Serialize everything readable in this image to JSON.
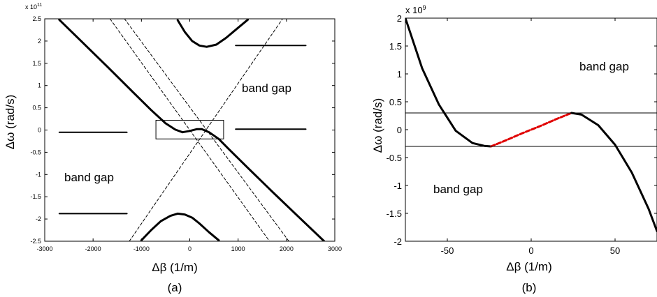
{
  "chart_data": [
    {
      "type": "line",
      "panel_label": "(a)",
      "xlabel": "Δβ (1/m)",
      "ylabel": "Δω (rad/s)",
      "y_exponent": "x 10",
      "y_exponent_power": "11",
      "xlim": [
        -3000,
        3000
      ],
      "ylim": [
        -2.5,
        2.5
      ],
      "xticks": [
        "-3000",
        "-2000",
        "-1000",
        "0",
        "1000",
        "2000",
        "3000"
      ],
      "yticks": [
        "-2.5",
        "-2",
        "-1.5",
        "-1",
        "-0.5",
        "0",
        "0.5",
        "1",
        "1.5",
        "2",
        "2.5"
      ],
      "annotations": [
        "band gap",
        "band gap"
      ],
      "series": [
        {
          "style": "thick-solid",
          "x": [
            -2700,
            -2200,
            -1700,
            -1200,
            -800,
            -500,
            -300,
            -150,
            0,
            150,
            250,
            400,
            600,
            800,
            1200,
            1700,
            2200,
            2780
          ],
          "y": [
            2.48,
            1.95,
            1.42,
            0.88,
            0.45,
            0.15,
            0.01,
            -0.05,
            -0.02,
            0.02,
            0.02,
            -0.05,
            -0.2,
            -0.42,
            -0.85,
            -1.38,
            -1.9,
            -2.5
          ]
        },
        {
          "style": "thick-solid",
          "x": [
            -250,
            -100,
            50,
            200,
            350,
            550,
            750,
            1000,
            1200
          ],
          "y": [
            2.47,
            2.2,
            2.0,
            1.9,
            1.87,
            1.92,
            2.07,
            2.3,
            2.48
          ]
        },
        {
          "style": "thick-solid",
          "x": [
            -1000,
            -800,
            -600,
            -400,
            -250,
            -100,
            50,
            200,
            400,
            600
          ],
          "y": [
            -2.48,
            -2.25,
            -2.05,
            -1.93,
            -1.88,
            -1.9,
            -1.97,
            -2.1,
            -2.3,
            -2.48
          ]
        },
        {
          "style": "dashed",
          "x": [
            -1250,
            1920
          ],
          "y": [
            -2.5,
            2.5
          ]
        },
        {
          "style": "dashed",
          "x": [
            -1650,
            1650
          ],
          "y": [
            2.5,
            -2.5
          ]
        },
        {
          "style": "dashed",
          "x": [
            -1350,
            2050
          ],
          "y": [
            2.5,
            -2.5
          ]
        },
        {
          "style": "solid",
          "x": [
            -2700,
            -1300
          ],
          "y": [
            -0.05,
            -0.05
          ]
        },
        {
          "style": "solid",
          "x": [
            -2700,
            -1300
          ],
          "y": [
            -1.88,
            -1.88
          ]
        },
        {
          "style": "solid",
          "x": [
            950,
            2400
          ],
          "y": [
            0.02,
            0.02
          ]
        },
        {
          "style": "solid",
          "x": [
            950,
            2400
          ],
          "y": [
            1.9,
            1.9
          ]
        }
      ],
      "inset_box": {
        "x": [
          -700,
          700
        ],
        "y": [
          -0.2,
          0.22
        ]
      }
    },
    {
      "type": "line",
      "panel_label": "(b)",
      "xlabel": "Δβ (1/m)",
      "ylabel": "Δω (rad/s)",
      "y_exponent": "x 10",
      "y_exponent_power": "9",
      "xlim": [
        -75,
        75
      ],
      "ylim": [
        -2,
        2
      ],
      "xticks": [
        "-50",
        "0",
        "50"
      ],
      "yticks": [
        "-2",
        "-1.5",
        "-1",
        "-0.5",
        "0",
        "0.5",
        "1",
        "1.5",
        "2"
      ],
      "annotations": [
        "band gap",
        "band gap"
      ],
      "series": [
        {
          "style": "thick-solid",
          "color": "#000000",
          "x": [
            -75,
            -65,
            -55,
            -45,
            -35,
            -28,
            -24
          ],
          "y": [
            2.0,
            1.1,
            0.45,
            -0.02,
            -0.24,
            -0.29,
            -0.3
          ]
        },
        {
          "style": "thick-dashed",
          "color": "#e00000",
          "x": [
            -24,
            -15,
            -5,
            5,
            15,
            24
          ],
          "y": [
            -0.3,
            -0.19,
            -0.06,
            0.06,
            0.19,
            0.3
          ]
        },
        {
          "style": "thick-solid",
          "color": "#000000",
          "x": [
            24,
            30,
            40,
            50,
            60,
            70,
            75
          ],
          "y": [
            0.3,
            0.27,
            0.08,
            -0.27,
            -0.77,
            -1.42,
            -1.82
          ]
        },
        {
          "style": "thin-solid",
          "color": "#000000",
          "x": [
            -75,
            75
          ],
          "y": [
            0.3,
            0.3
          ]
        },
        {
          "style": "thin-solid",
          "color": "#000000",
          "x": [
            -75,
            75
          ],
          "y": [
            -0.3,
            -0.3
          ]
        }
      ]
    }
  ]
}
